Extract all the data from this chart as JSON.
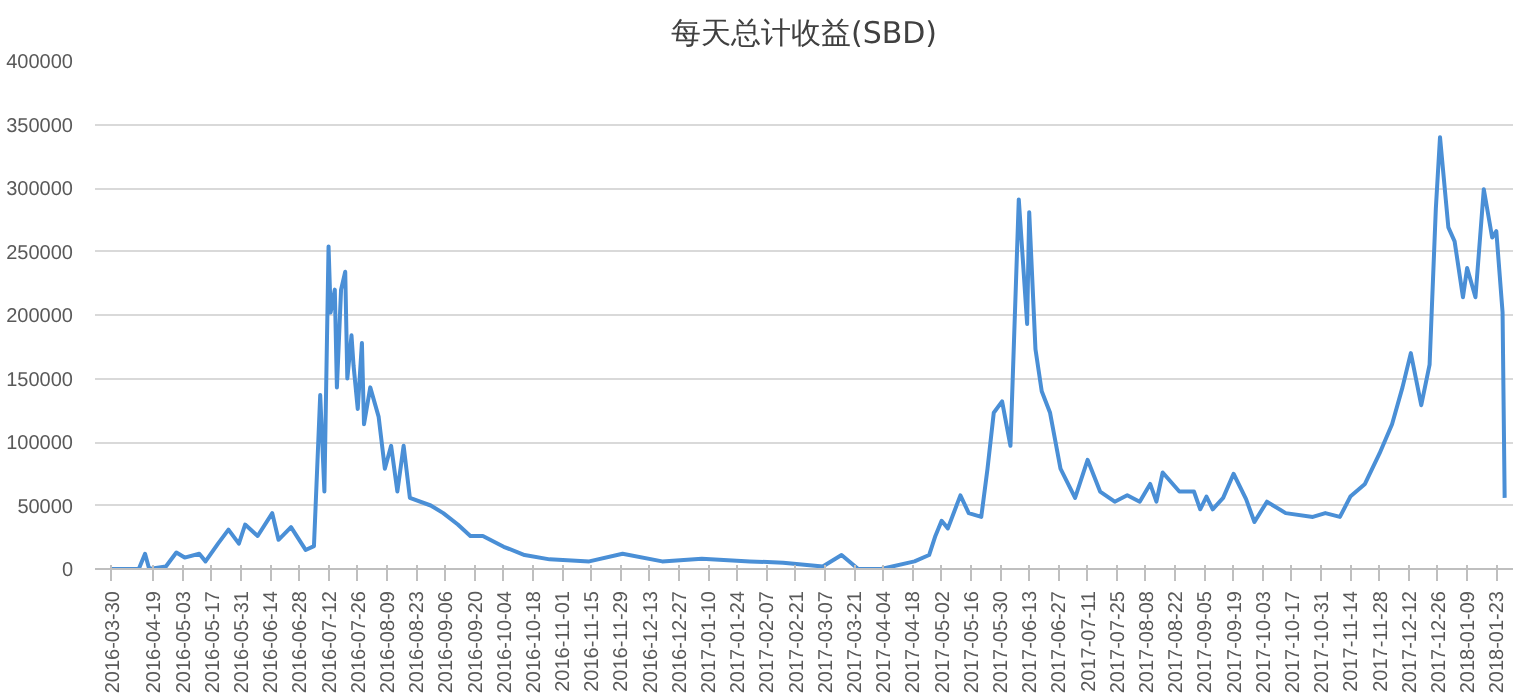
{
  "chart_data": {
    "type": "line",
    "title": "每天总计收益(SBD)",
    "color": "#4a8fd6",
    "grid": "y",
    "x": [
      "2016-03-30",
      "2016-04-12",
      "2016-04-15",
      "2016-04-17",
      "2016-04-25",
      "2016-04-30",
      "2016-05-04",
      "2016-05-11",
      "2016-05-14",
      "2016-05-20",
      "2016-05-25",
      "2016-05-30",
      "2016-06-02",
      "2016-06-08",
      "2016-06-15",
      "2016-06-18",
      "2016-06-24",
      "2016-07-01",
      "2016-07-05",
      "2016-07-08",
      "2016-07-10",
      "2016-07-12",
      "2016-07-13",
      "2016-07-15",
      "2016-07-16",
      "2016-07-18",
      "2016-07-20",
      "2016-07-21",
      "2016-07-23",
      "2016-07-24",
      "2016-07-26",
      "2016-07-28",
      "2016-07-29",
      "2016-08-01",
      "2016-08-05",
      "2016-08-08",
      "2016-08-11",
      "2016-08-14",
      "2016-08-17",
      "2016-08-20",
      "2016-08-30",
      "2016-09-05",
      "2016-09-12",
      "2016-09-18",
      "2016-09-24",
      "2016-10-04",
      "2016-10-14",
      "2016-10-26",
      "2016-11-14",
      "2016-11-30",
      "2016-12-19",
      "2017-01-07",
      "2017-01-30",
      "2017-02-15",
      "2017-03-06",
      "2017-03-15",
      "2017-03-23",
      "2017-04-03",
      "2017-04-19",
      "2017-04-26",
      "2017-04-29",
      "2017-05-02",
      "2017-05-05",
      "2017-05-11",
      "2017-05-15",
      "2017-05-21",
      "2017-05-24",
      "2017-05-27",
      "2017-05-31",
      "2017-06-04",
      "2017-06-08",
      "2017-06-12",
      "2017-06-13",
      "2017-06-16",
      "2017-06-19",
      "2017-06-23",
      "2017-06-28",
      "2017-07-05",
      "2017-07-11",
      "2017-07-17",
      "2017-07-24",
      "2017-07-30",
      "2017-08-05",
      "2017-08-10",
      "2017-08-13",
      "2017-08-16",
      "2017-08-24",
      "2017-08-31",
      "2017-09-03",
      "2017-09-06",
      "2017-09-09",
      "2017-09-14",
      "2017-09-19",
      "2017-09-25",
      "2017-09-29",
      "2017-10-05",
      "2017-10-14",
      "2017-10-27",
      "2017-11-02",
      "2017-11-09",
      "2017-11-14",
      "2017-11-21",
      "2017-11-28",
      "2017-12-04",
      "2017-12-09",
      "2017-12-13",
      "2017-12-18",
      "2017-12-22",
      "2017-12-25",
      "2017-12-27",
      "2017-12-31",
      "2018-01-03",
      "2018-01-07",
      "2018-01-09",
      "2018-01-13",
      "2018-01-17",
      "2018-01-21",
      "2018-01-23",
      "2018-01-26",
      "2018-01-27"
    ],
    "values": [
      0,
      0,
      12000,
      0,
      2000,
      13000,
      9000,
      12000,
      6000,
      20000,
      31000,
      20000,
      35000,
      26000,
      44000,
      23000,
      33000,
      15000,
      18000,
      137000,
      61000,
      254000,
      202000,
      220000,
      143000,
      220000,
      234000,
      150000,
      184000,
      160000,
      126000,
      178000,
      114000,
      143000,
      120000,
      79000,
      97000,
      61000,
      97000,
      56000,
      50000,
      44000,
      35000,
      26000,
      26000,
      17500,
      11000,
      7600,
      6000,
      12000,
      6000,
      8000,
      6000,
      5000,
      2000,
      11000,
      0,
      0,
      6000,
      11000,
      26000,
      38000,
      32000,
      58000,
      44000,
      41000,
      79000,
      123000,
      132000,
      97000,
      291000,
      193000,
      281000,
      173000,
      140000,
      123000,
      79000,
      56000,
      86000,
      61000,
      53000,
      58000,
      53000,
      67000,
      53000,
      76000,
      61000,
      61000,
      47000,
      57000,
      47000,
      56000,
      75000,
      55000,
      37000,
      53000,
      44000,
      41000,
      44000,
      41000,
      57000,
      67000,
      91000,
      114000,
      143000,
      170000,
      129000,
      161000,
      284000,
      340000,
      269000,
      258000,
      214000,
      237000,
      214000,
      299000,
      261000,
      266000,
      202000,
      56000
    ],
    "xlim": [
      "2016-03-22",
      "2018-01-31"
    ],
    "xticks": [
      "2016-03-30",
      "2016-04-19",
      "2016-05-03",
      "2016-05-17",
      "2016-05-31",
      "2016-06-14",
      "2016-06-28",
      "2016-07-12",
      "2016-07-26",
      "2016-08-09",
      "2016-08-23",
      "2016-09-06",
      "2016-09-20",
      "2016-10-04",
      "2016-10-18",
      "2016-11-01",
      "2016-11-15",
      "2016-11-29",
      "2016-12-13",
      "2016-12-27",
      "2017-01-10",
      "2017-01-24",
      "2017-02-07",
      "2017-02-21",
      "2017-03-07",
      "2017-03-21",
      "2017-04-04",
      "2017-04-18",
      "2017-05-02",
      "2017-05-16",
      "2017-05-30",
      "2017-06-13",
      "2017-06-27",
      "2017-07-11",
      "2017-07-25",
      "2017-08-08",
      "2017-08-22",
      "2017-09-05",
      "2017-09-19",
      "2017-10-03",
      "2017-10-17",
      "2017-10-31",
      "2017-11-14",
      "2017-11-28",
      "2017-12-12",
      "2017-12-26",
      "2018-01-09",
      "2018-01-23"
    ],
    "ylim": [
      0,
      400000
    ],
    "yticks": [
      0,
      50000,
      100000,
      150000,
      200000,
      250000,
      300000,
      350000,
      400000
    ]
  }
}
